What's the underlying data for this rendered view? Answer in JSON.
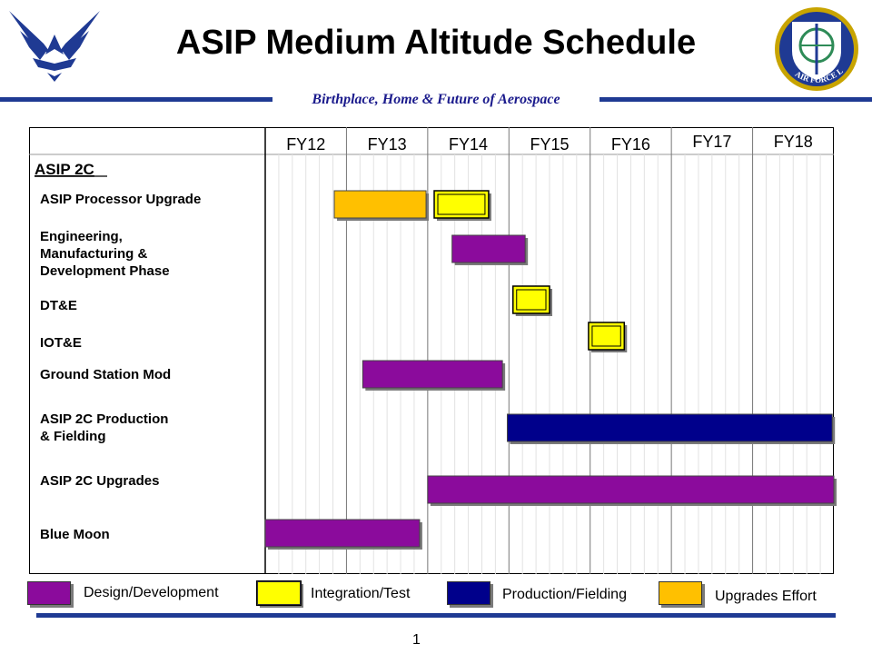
{
  "header": {
    "title": "ASIP Medium Altitude Schedule",
    "tagline": "Birthplace, Home & Future of Aerospace",
    "left_logo_icon": "air-force-wings-icon",
    "right_logo_icon": "air-force-lcmc-seal-icon",
    "seal_text": "AIR FORCE LCMC"
  },
  "colors": {
    "design_development": "#8b0b9c",
    "integration_test": "#ffff00",
    "production_fielding": "#00008b",
    "upgrades_effort": "#ffc000",
    "header_rule": "#1f3a93"
  },
  "chart_data": {
    "type": "gantt",
    "fiscal_years": [
      "FY12",
      "FY13",
      "FY14",
      "FY15",
      "FY16",
      "FY17",
      "FY18"
    ],
    "xlim": [
      2012,
      2019
    ],
    "group": "ASIP 2C",
    "tasks": [
      {
        "label": "ASIP Processor Upgrade",
        "bars": [
          {
            "type": "upgrades_effort",
            "start": 2012.85,
            "end": 2013.98
          },
          {
            "type": "integration_test",
            "start": 2014.08,
            "end": 2014.75
          }
        ]
      },
      {
        "label": "Engineering,\nManufacturing &\nDevelopment Phase",
        "bars": [
          {
            "type": "design_development",
            "start": 2014.3,
            "end": 2015.2
          }
        ]
      },
      {
        "label": "DT&E",
        "bars": [
          {
            "type": "integration_test",
            "start": 2015.05,
            "end": 2015.5
          }
        ]
      },
      {
        "label": "IOT&E",
        "bars": [
          {
            "type": "integration_test",
            "start": 2015.98,
            "end": 2016.42
          }
        ]
      },
      {
        "label": "Ground Station Mod",
        "bars": [
          {
            "type": "design_development",
            "start": 2013.2,
            "end": 2014.92
          }
        ]
      },
      {
        "label": "ASIP 2C Production\n& Fielding",
        "bars": [
          {
            "type": "production_fielding",
            "start": 2014.98,
            "end": 2018.98
          }
        ]
      },
      {
        "label": "ASIP 2C Upgrades",
        "bars": [
          {
            "type": "design_development",
            "start": 2014.0,
            "end": 2019.0
          }
        ]
      },
      {
        "label": "Blue Moon",
        "bars": [
          {
            "type": "design_development",
            "start": 2012.0,
            "end": 2013.9
          }
        ]
      }
    ],
    "legend": [
      {
        "type": "design_development",
        "label": "Design/Development"
      },
      {
        "type": "integration_test",
        "label": "Integration/Test"
      },
      {
        "type": "production_fielding",
        "label": "Production/Fielding"
      },
      {
        "type": "upgrades_effort",
        "label": "Upgrades Effort"
      }
    ],
    "grid": true,
    "legend_position": "bottom"
  },
  "footer": {
    "page_number": "1"
  }
}
